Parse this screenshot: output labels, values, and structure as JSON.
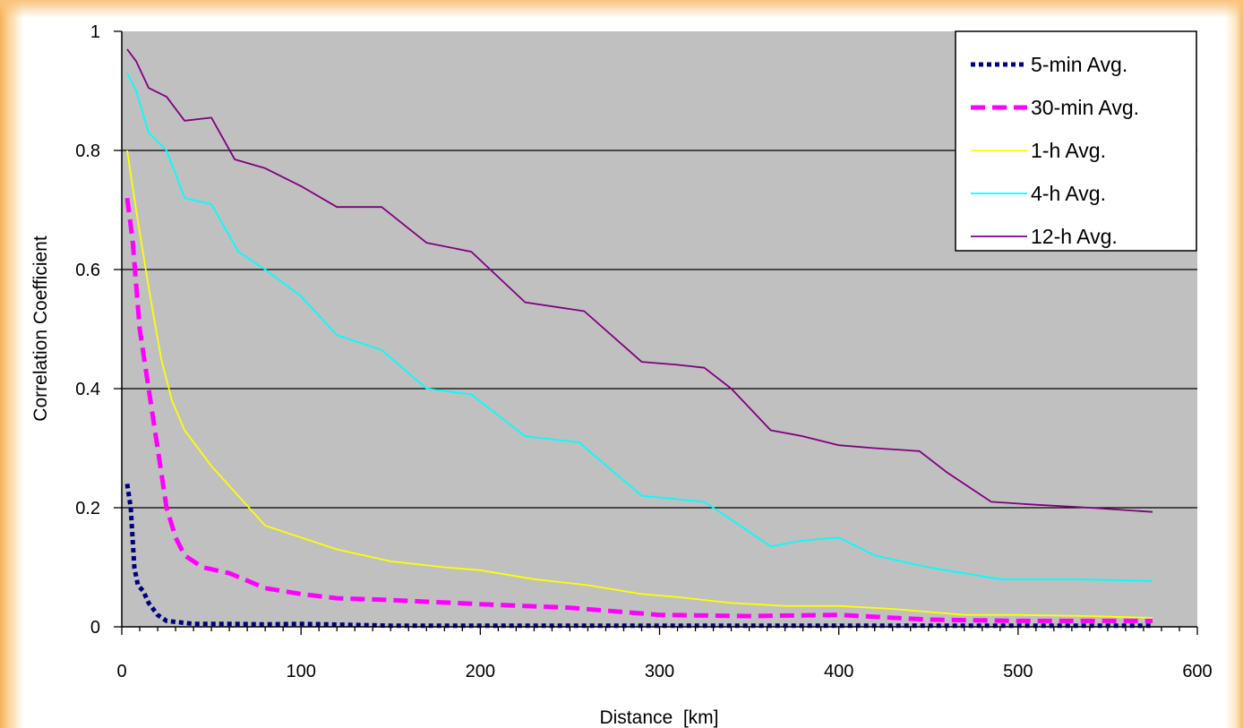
{
  "chart_data": {
    "type": "line",
    "xlabel": "Distance  [km]",
    "ylabel": "Correlation Coefficient",
    "xlim": [
      0,
      600
    ],
    "ylim": [
      0,
      1
    ],
    "xticks": [
      0,
      100,
      200,
      300,
      400,
      500,
      600
    ],
    "yticks": [
      0,
      0.2,
      0.4,
      0.6,
      0.8,
      1
    ],
    "ytick_labels": [
      "0",
      "0.2",
      "0.4",
      "0.6",
      "0.8",
      "1"
    ],
    "grid": "horizontal",
    "plot_background": "#c0c0c0",
    "legend_position": "top-right",
    "series": [
      {
        "name": "5-min Avg.",
        "color": "#000080",
        "style": "dotted",
        "points": [
          [
            3,
            0.24
          ],
          [
            5,
            0.2
          ],
          [
            7,
            0.1
          ],
          [
            9,
            0.07
          ],
          [
            12,
            0.06
          ],
          [
            15,
            0.04
          ],
          [
            20,
            0.02
          ],
          [
            25,
            0.01
          ],
          [
            40,
            0.005
          ],
          [
            60,
            0.005
          ],
          [
            80,
            0.004
          ],
          [
            100,
            0.005
          ],
          [
            150,
            0.002
          ],
          [
            250,
            0.002
          ],
          [
            400,
            0.002
          ],
          [
            575,
            0.002
          ]
        ]
      },
      {
        "name": "30-min Avg.",
        "color": "#ff00ff",
        "style": "dashed",
        "points": [
          [
            3,
            0.72
          ],
          [
            6,
            0.65
          ],
          [
            10,
            0.5
          ],
          [
            15,
            0.4
          ],
          [
            20,
            0.3
          ],
          [
            25,
            0.2
          ],
          [
            30,
            0.15
          ],
          [
            35,
            0.12
          ],
          [
            45,
            0.1
          ],
          [
            60,
            0.09
          ],
          [
            80,
            0.065
          ],
          [
            100,
            0.055
          ],
          [
            120,
            0.048
          ],
          [
            150,
            0.045
          ],
          [
            200,
            0.038
          ],
          [
            250,
            0.032
          ],
          [
            300,
            0.02
          ],
          [
            350,
            0.018
          ],
          [
            400,
            0.02
          ],
          [
            450,
            0.012
          ],
          [
            500,
            0.01
          ],
          [
            575,
            0.01
          ]
        ]
      },
      {
        "name": "1-h Avg.",
        "color": "#ffff00",
        "style": "solid",
        "points": [
          [
            3,
            0.8
          ],
          [
            8,
            0.7
          ],
          [
            15,
            0.57
          ],
          [
            22,
            0.45
          ],
          [
            28,
            0.38
          ],
          [
            35,
            0.33
          ],
          [
            50,
            0.27
          ],
          [
            65,
            0.22
          ],
          [
            80,
            0.17
          ],
          [
            100,
            0.15
          ],
          [
            120,
            0.13
          ],
          [
            150,
            0.11
          ],
          [
            180,
            0.1
          ],
          [
            200,
            0.095
          ],
          [
            230,
            0.08
          ],
          [
            260,
            0.07
          ],
          [
            290,
            0.055
          ],
          [
            310,
            0.05
          ],
          [
            340,
            0.04
          ],
          [
            370,
            0.035
          ],
          [
            400,
            0.035
          ],
          [
            430,
            0.03
          ],
          [
            470,
            0.02
          ],
          [
            500,
            0.02
          ],
          [
            540,
            0.018
          ],
          [
            575,
            0.015
          ]
        ]
      },
      {
        "name": "4-h Avg.",
        "color": "#00ffff",
        "style": "solid",
        "points": [
          [
            3,
            0.93
          ],
          [
            8,
            0.9
          ],
          [
            15,
            0.83
          ],
          [
            25,
            0.8
          ],
          [
            35,
            0.72
          ],
          [
            50,
            0.71
          ],
          [
            65,
            0.63
          ],
          [
            80,
            0.6
          ],
          [
            100,
            0.555
          ],
          [
            120,
            0.49
          ],
          [
            145,
            0.465
          ],
          [
            170,
            0.4
          ],
          [
            195,
            0.39
          ],
          [
            225,
            0.32
          ],
          [
            255,
            0.31
          ],
          [
            290,
            0.22
          ],
          [
            325,
            0.21
          ],
          [
            345,
            0.17
          ],
          [
            362,
            0.135
          ],
          [
            380,
            0.145
          ],
          [
            400,
            0.15
          ],
          [
            420,
            0.12
          ],
          [
            450,
            0.1
          ],
          [
            490,
            0.08
          ],
          [
            530,
            0.08
          ],
          [
            575,
            0.077
          ]
        ]
      },
      {
        "name": "12-h Avg.",
        "color": "#800080",
        "style": "solid",
        "points": [
          [
            3,
            0.97
          ],
          [
            8,
            0.95
          ],
          [
            15,
            0.905
          ],
          [
            25,
            0.89
          ],
          [
            35,
            0.85
          ],
          [
            50,
            0.855
          ],
          [
            63,
            0.785
          ],
          [
            80,
            0.77
          ],
          [
            100,
            0.74
          ],
          [
            120,
            0.705
          ],
          [
            145,
            0.705
          ],
          [
            170,
            0.645
          ],
          [
            195,
            0.63
          ],
          [
            225,
            0.545
          ],
          [
            258,
            0.53
          ],
          [
            290,
            0.445
          ],
          [
            310,
            0.44
          ],
          [
            325,
            0.435
          ],
          [
            340,
            0.4
          ],
          [
            362,
            0.33
          ],
          [
            380,
            0.32
          ],
          [
            400,
            0.305
          ],
          [
            420,
            0.3
          ],
          [
            445,
            0.295
          ],
          [
            460,
            0.26
          ],
          [
            485,
            0.21
          ],
          [
            510,
            0.205
          ],
          [
            540,
            0.2
          ],
          [
            575,
            0.193
          ]
        ]
      }
    ]
  }
}
